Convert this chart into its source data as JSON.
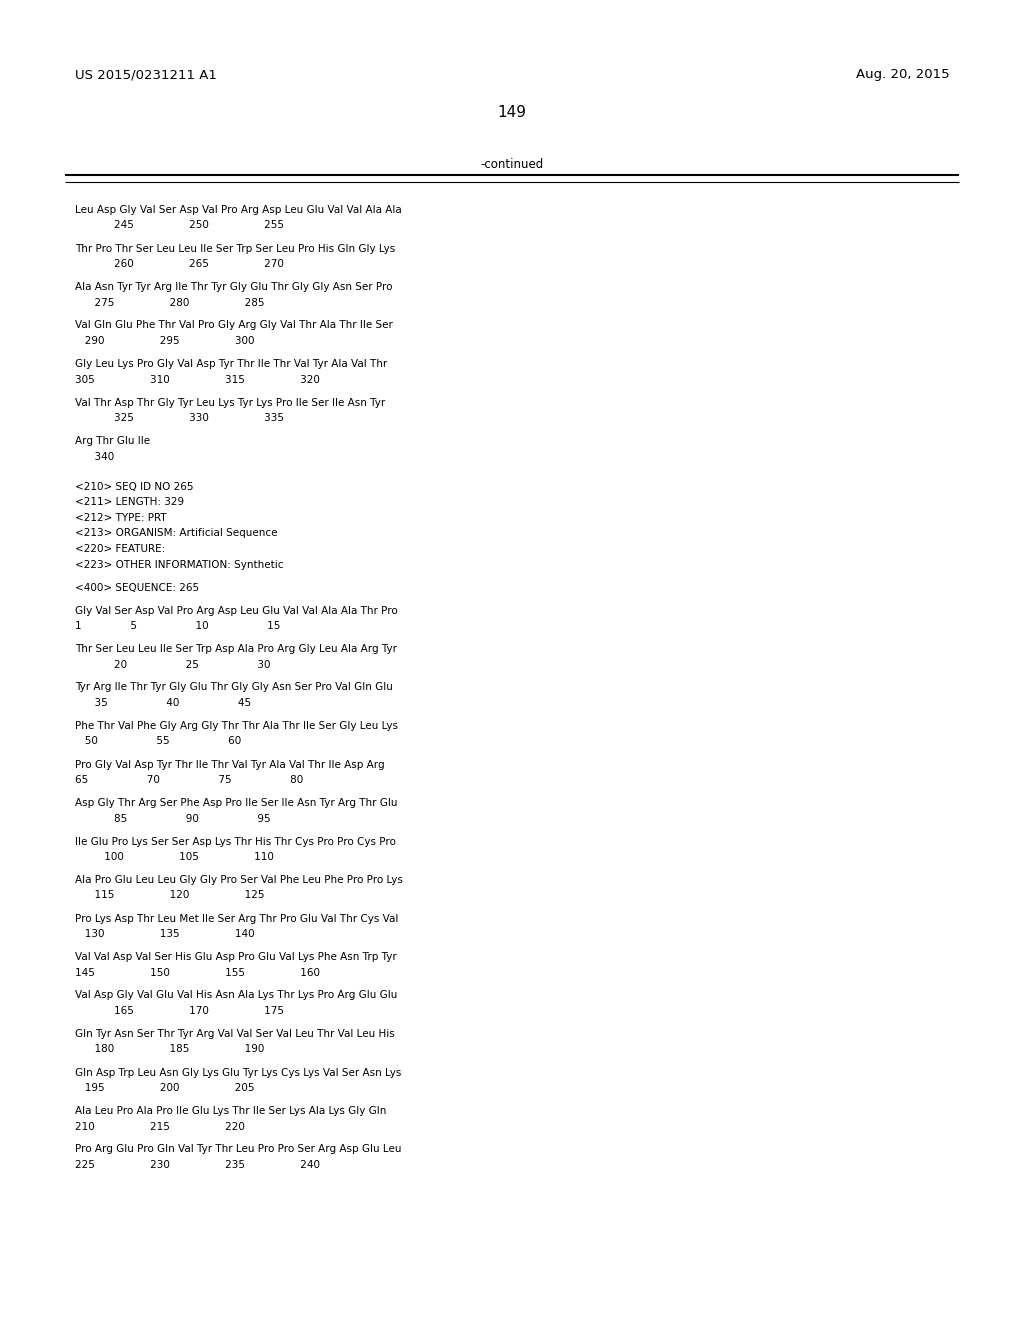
{
  "background_color": "#ffffff",
  "header_left": "US 2015/0231211 A1",
  "header_right": "Aug. 20, 2015",
  "page_number": "149",
  "continued_label": "-continued",
  "body_lines": [
    "Leu Asp Gly Val Ser Asp Val Pro Arg Asp Leu Glu Val Val Ala Ala",
    "            245                 250                 255",
    "",
    "Thr Pro Thr Ser Leu Leu Ile Ser Trp Ser Leu Pro His Gln Gly Lys",
    "            260                 265                 270",
    "",
    "Ala Asn Tyr Tyr Arg Ile Thr Tyr Gly Glu Thr Gly Gly Asn Ser Pro",
    "      275                 280                 285",
    "",
    "Val Gln Glu Phe Thr Val Pro Gly Arg Gly Val Thr Ala Thr Ile Ser",
    "   290                 295                 300",
    "",
    "Gly Leu Lys Pro Gly Val Asp Tyr Thr Ile Thr Val Tyr Ala Val Thr",
    "305                 310                 315                 320",
    "",
    "Val Thr Asp Thr Gly Tyr Leu Lys Tyr Lys Pro Ile Ser Ile Asn Tyr",
    "            325                 330                 335",
    "",
    "Arg Thr Glu Ile",
    "      340",
    "",
    "",
    "<210> SEQ ID NO 265",
    "<211> LENGTH: 329",
    "<212> TYPE: PRT",
    "<213> ORGANISM: Artificial Sequence",
    "<220> FEATURE:",
    "<223> OTHER INFORMATION: Synthetic",
    "",
    "<400> SEQUENCE: 265",
    "",
    "Gly Val Ser Asp Val Pro Arg Asp Leu Glu Val Val Ala Ala Thr Pro",
    "1               5                  10                  15",
    "",
    "Thr Ser Leu Leu Ile Ser Trp Asp Ala Pro Arg Gly Leu Ala Arg Tyr",
    "            20                  25                  30",
    "",
    "Tyr Arg Ile Thr Tyr Gly Glu Thr Gly Gly Asn Ser Pro Val Gln Glu",
    "      35                  40                  45",
    "",
    "Phe Thr Val Phe Gly Arg Gly Thr Thr Ala Thr Ile Ser Gly Leu Lys",
    "   50                  55                  60",
    "",
    "Pro Gly Val Asp Tyr Thr Ile Thr Val Tyr Ala Val Thr Ile Asp Arg",
    "65                  70                  75                  80",
    "",
    "Asp Gly Thr Arg Ser Phe Asp Pro Ile Ser Ile Asn Tyr Arg Thr Glu",
    "            85                  90                  95",
    "",
    "Ile Glu Pro Lys Ser Ser Asp Lys Thr His Thr Cys Pro Pro Cys Pro",
    "         100                 105                 110",
    "",
    "Ala Pro Glu Leu Leu Gly Gly Pro Ser Val Phe Leu Phe Pro Pro Lys",
    "      115                 120                 125",
    "",
    "Pro Lys Asp Thr Leu Met Ile Ser Arg Thr Pro Glu Val Thr Cys Val",
    "   130                 135                 140",
    "",
    "Val Val Asp Val Ser His Glu Asp Pro Glu Val Lys Phe Asn Trp Tyr",
    "145                 150                 155                 160",
    "",
    "Val Asp Gly Val Glu Val His Asn Ala Lys Thr Lys Pro Arg Glu Glu",
    "            165                 170                 175",
    "",
    "Gln Tyr Asn Ser Thr Tyr Arg Val Val Ser Val Leu Thr Val Leu His",
    "      180                 185                 190",
    "",
    "Gln Asp Trp Leu Asn Gly Lys Glu Tyr Lys Cys Lys Val Ser Asn Lys",
    "   195                 200                 205",
    "",
    "Ala Leu Pro Ala Pro Ile Glu Lys Thr Ile Ser Lys Ala Lys Gly Gln",
    "210                 215                 220",
    "",
    "Pro Arg Glu Pro Gln Val Tyr Thr Leu Pro Pro Ser Arg Asp Glu Leu",
    "225                 230                 235                 240"
  ]
}
